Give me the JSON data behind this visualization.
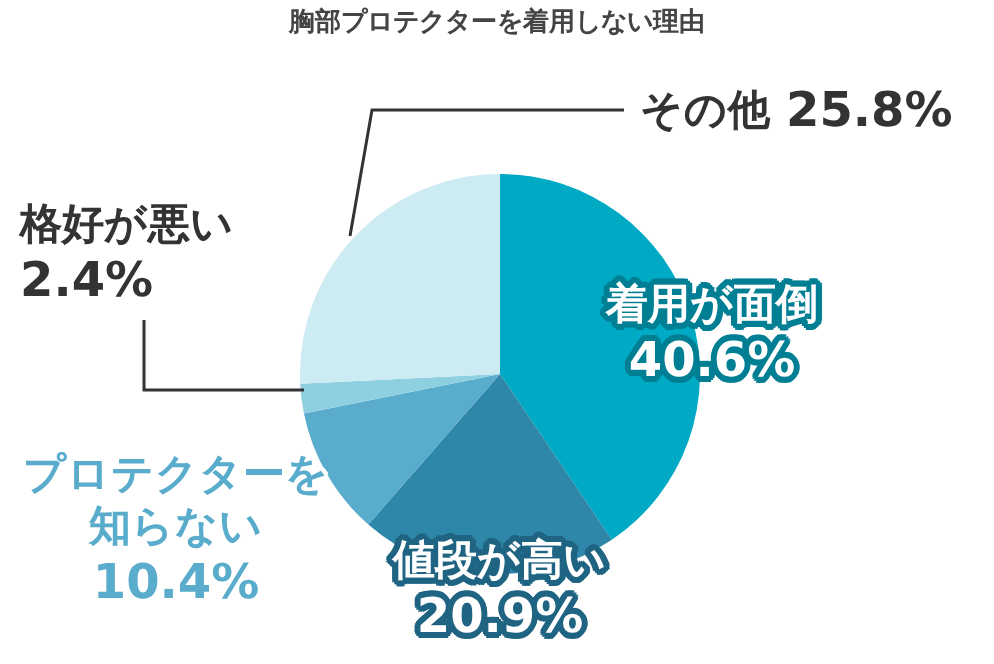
{
  "chart_data": {
    "type": "pie",
    "title": "胸部プロテクターを着用しない理由",
    "categories": [
      "着用が面倒",
      "値段が高い",
      "プロテクターを知らない",
      "格好が悪い",
      "その他"
    ],
    "values": [
      40.6,
      20.9,
      10.4,
      2.4,
      25.8
    ],
    "value_labels": [
      "40.6%",
      "20.9%",
      "10.4%",
      "2.4%",
      "25.8%"
    ],
    "colors": [
      "#00a9c4",
      "#2e86a8",
      "#5aaccc",
      "#8fd0e0",
      "#cdebf2"
    ],
    "legend": false
  }
}
